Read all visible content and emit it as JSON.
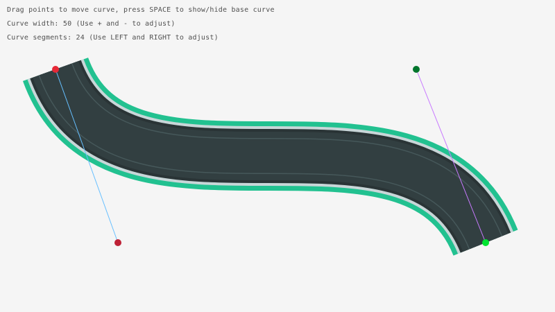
{
  "instructions": {
    "line1": "Drag points to move curve, press SPACE to show/hide base curve",
    "line2": "Curve width: 50 (Use + and - to adjust)",
    "line3": "Curve segments: 24 (Use LEFT and RIGHT to adjust)"
  },
  "curve": {
    "width": 50,
    "segments": 24
  },
  "colors": {
    "background": "#f5f5f5",
    "road_edge": "#22c190",
    "road_shoulder": "#c8d6d8",
    "road_surface": "#323f41",
    "start_point": "#e62937",
    "start_tangent_point": "#be2136",
    "end_tangent_point": "#00752c",
    "end_point": "#00e430",
    "start_tangent_line": "#66bfff",
    "end_tangent_line": "#c87aff"
  }
}
